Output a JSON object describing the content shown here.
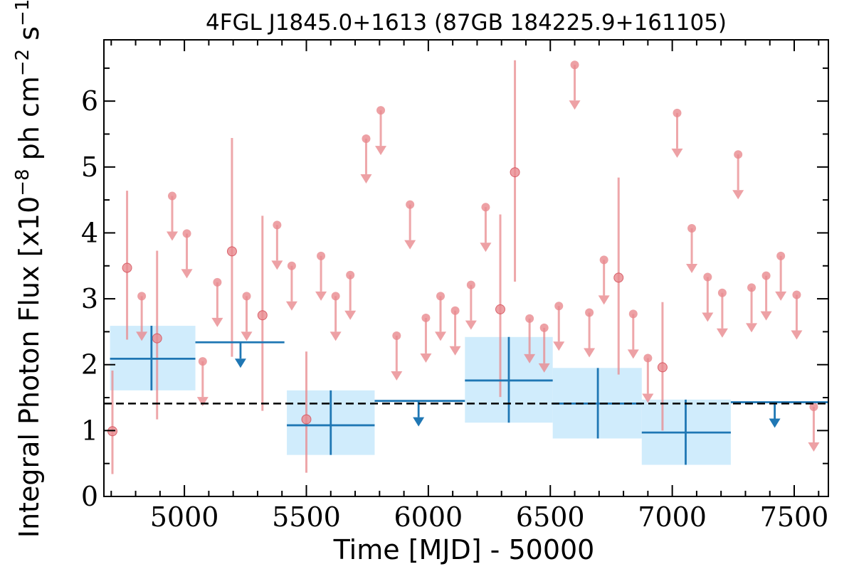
{
  "chart_data": {
    "type": "scatter",
    "title": "4FGL J1845.0+1613 (87GB 184225.9+161105)",
    "xlabel": "Time [MJD] - 50000",
    "ylabel": "Integral Photon Flux [x10$^{-8}$ ph cm$^{-2}$ s$^{-1}$]",
    "ylabel_parts": {
      "a": "Integral Photon Flux [x10",
      "exp1": "−8",
      "b": " ph cm",
      "exp2": "−2",
      "c": " s",
      "exp3": "−1",
      "d": "]"
    },
    "xlim": [
      4670,
      7640
    ],
    "ylim": [
      0,
      6.93
    ],
    "xticks": [
      5000,
      5500,
      6000,
      6500,
      7000,
      7500
    ],
    "yticks": [
      0,
      1,
      2,
      3,
      4,
      5,
      6
    ],
    "grid": false,
    "legend": "none",
    "reference_line": {
      "y": 1.41,
      "style": "dashed",
      "color": "#000000"
    },
    "colors": {
      "short_bins": "#e88a8e",
      "long_bins": "#1f77b4",
      "long_bin_box": "#c8e9fb"
    },
    "series": [
      {
        "points": [
          {
            "x": 4705,
            "y": 0.99,
            "lo": 0.34,
            "hi": 1.91
          },
          {
            "x": 4765,
            "y": 3.47,
            "lo": 2.38,
            "hi": 4.64
          },
          {
            "x": 4888,
            "y": 2.4,
            "lo": 1.17,
            "hi": 3.73
          },
          {
            "x": 5195,
            "y": 3.72,
            "lo": 2.12,
            "hi": 5.44
          },
          {
            "x": 5320,
            "y": 2.75,
            "lo": 1.3,
            "hi": 4.26
          },
          {
            "x": 5500,
            "y": 1.17,
            "lo": 0.36,
            "hi": 2.2
          },
          {
            "x": 6295,
            "y": 2.84,
            "lo": 1.51,
            "hi": 4.28
          },
          {
            "x": 6355,
            "y": 4.92,
            "lo": 3.26,
            "hi": 6.62
          },
          {
            "x": 6780,
            "y": 3.32,
            "lo": 1.85,
            "hi": 4.84
          },
          {
            "x": 6960,
            "y": 1.96,
            "lo": 1.0,
            "hi": 2.95
          }
        ],
        "upper_limits": [
          {
            "x": 4825,
            "y": 3.04
          },
          {
            "x": 4950,
            "y": 4.56
          },
          {
            "x": 5010,
            "y": 3.99
          },
          {
            "x": 5075,
            "y": 2.05
          },
          {
            "x": 5135,
            "y": 3.25
          },
          {
            "x": 5255,
            "y": 3.04
          },
          {
            "x": 5380,
            "y": 4.12
          },
          {
            "x": 5440,
            "y": 3.5
          },
          {
            "x": 5560,
            "y": 3.65
          },
          {
            "x": 5620,
            "y": 3.04
          },
          {
            "x": 5680,
            "y": 3.36
          },
          {
            "x": 5745,
            "y": 5.43
          },
          {
            "x": 5805,
            "y": 5.86
          },
          {
            "x": 5870,
            "y": 2.44
          },
          {
            "x": 5925,
            "y": 4.43
          },
          {
            "x": 5990,
            "y": 2.71
          },
          {
            "x": 6050,
            "y": 3.04
          },
          {
            "x": 6110,
            "y": 2.82
          },
          {
            "x": 6175,
            "y": 3.21
          },
          {
            "x": 6235,
            "y": 4.39
          },
          {
            "x": 6415,
            "y": 2.7
          },
          {
            "x": 6475,
            "y": 2.56
          },
          {
            "x": 6535,
            "y": 2.89
          },
          {
            "x": 6600,
            "y": 6.55
          },
          {
            "x": 6660,
            "y": 2.79
          },
          {
            "x": 6720,
            "y": 3.59
          },
          {
            "x": 6840,
            "y": 2.77
          },
          {
            "x": 6900,
            "y": 2.1
          },
          {
            "x": 7020,
            "y": 5.82
          },
          {
            "x": 7080,
            "y": 4.07
          },
          {
            "x": 7145,
            "y": 3.33
          },
          {
            "x": 7205,
            "y": 3.09
          },
          {
            "x": 7270,
            "y": 5.19
          },
          {
            "x": 7325,
            "y": 3.17
          },
          {
            "x": 7385,
            "y": 3.35
          },
          {
            "x": 7445,
            "y": 3.65
          },
          {
            "x": 7510,
            "y": 3.06
          },
          {
            "x": 7580,
            "y": 1.36
          }
        ]
      },
      {
        "points": [
          {
            "x0": 4695,
            "x1": 5045,
            "xc": 4865,
            "y": 2.09,
            "lo": 1.61,
            "hi": 2.59
          },
          {
            "x0": 5420,
            "x1": 5780,
            "xc": 5600,
            "y": 1.08,
            "lo": 0.63,
            "hi": 1.61
          },
          {
            "x0": 6150,
            "x1": 6510,
            "xc": 6330,
            "y": 1.76,
            "lo": 1.12,
            "hi": 2.42
          },
          {
            "x0": 6510,
            "x1": 6875,
            "xc": 6695,
            "y": 1.41,
            "lo": 0.88,
            "hi": 1.95
          },
          {
            "x0": 6875,
            "x1": 7240,
            "xc": 7055,
            "y": 0.97,
            "lo": 0.48,
            "hi": 1.47
          }
        ],
        "upper_limits": [
          {
            "x0": 5045,
            "x1": 5410,
            "xc": 5230,
            "y": 2.34
          },
          {
            "x0": 5780,
            "x1": 6150,
            "xc": 5960,
            "y": 1.45
          },
          {
            "x0": 7240,
            "x1": 7640,
            "xc": 7420,
            "y": 1.43
          }
        ]
      }
    ]
  }
}
